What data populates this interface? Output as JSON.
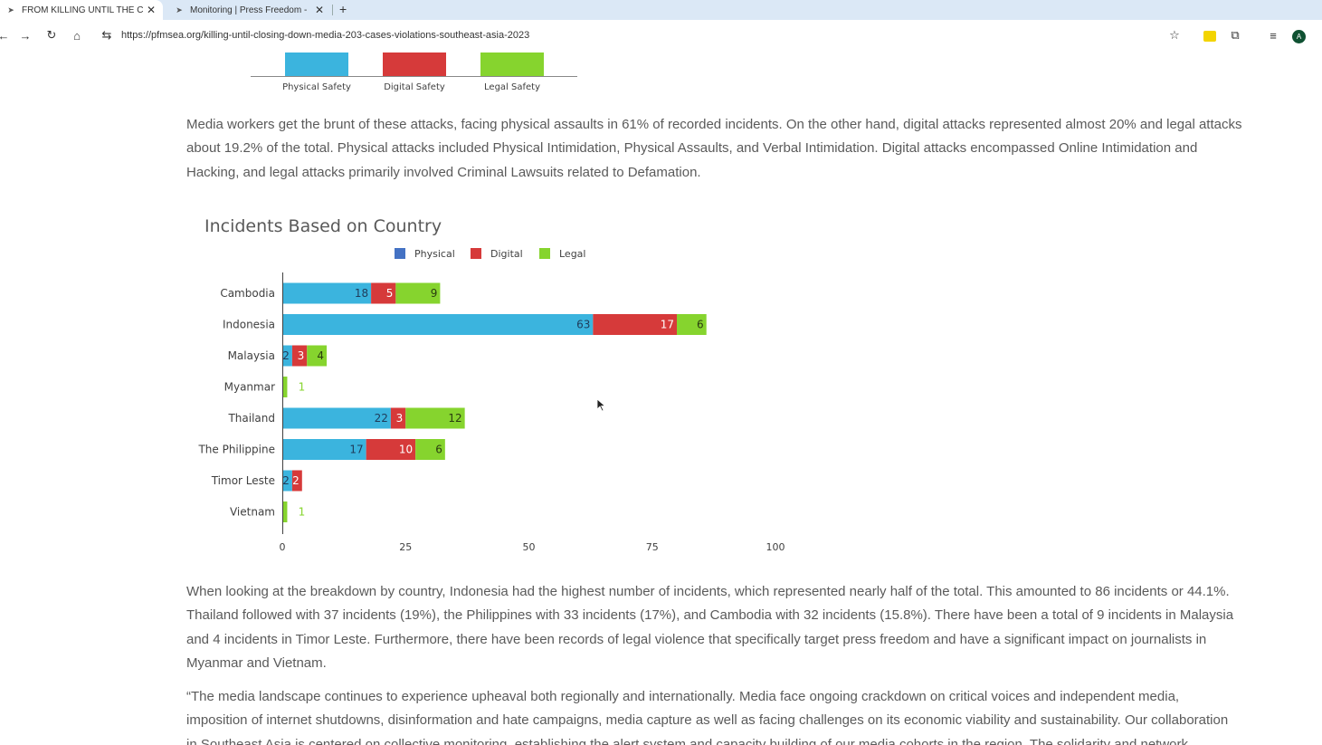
{
  "browser": {
    "tabs": [
      {
        "title": "FROM KILLING UNTIL THE C",
        "active": true
      },
      {
        "title": "Monitoring | Press Freedom -",
        "active": false
      }
    ],
    "new_tab": "+",
    "url": "https://pfmsea.org/killing-until-closing-down-media-203-cases-violations-southeast-asia-2023",
    "avatar_letter": "A"
  },
  "top_legend": {
    "labels": [
      "Physical Safety",
      "Digital Safety",
      "Legal Safety"
    ],
    "colors": [
      "#3bb4de",
      "#d63a3a",
      "#86d42e"
    ]
  },
  "article": {
    "paragraph1": [
      "Media workers get the brunt of these attacks, facing physical assaults in 61% of recorded incidents. On the other hand, digital attacks represented almost 20% and legal attacks",
      "about 19.2% of the total. Physical attacks included Physical Intimidation, Physical Assaults, and Verbal Intimidation. Digital attacks encompassed Online Intimidation and",
      "Hacking, and legal attacks primarily involved Criminal Lawsuits related to Defamation."
    ],
    "paragraph2": [
      "When looking at the breakdown by country, Indonesia had the highest number of incidents, which represented nearly half of the total. This amounted to 86 incidents or 44.1%.",
      "Thailand followed with 37 incidents (19%), the Philippines with 33 incidents (17%), and Cambodia with 32 incidents (15.8%). There have been a total of 9 incidents in Malaysia",
      "and 4 incidents in Timor Leste. Furthermore, there have been records of legal violence that specifically target press freedom and have a significant impact on journalists in",
      "Myanmar and Vietnam."
    ],
    "paragraph3": [
      "“The media landscape continues to experience upheaval both regionally and internationally. Media face ongoing crackdown on critical voices and independent media,",
      "imposition of internet shutdowns, disinformation and hate campaigns, media capture as well as facing challenges on its economic viability and sustainability. Our collaboration",
      "in Southeast Asia is centered on collective monitoring, establishing the alert system and capacity building of our media cohorts in the region. The solidarity and network"
    ]
  },
  "chart_data": {
    "type": "bar",
    "orientation": "horizontal",
    "stacked": true,
    "title": "Incidents Based on Country",
    "categories": [
      "Cambodia",
      "Indonesia",
      "Malaysia",
      "Myanmar",
      "Thailand",
      "The Philippine",
      "Timor Leste",
      "Vietnam"
    ],
    "series": [
      {
        "name": "Physical",
        "legend_color": "#4472c4",
        "bar_color": "#3bb4de",
        "label_color": "#1f3b5a",
        "values": [
          18,
          63,
          2,
          0,
          22,
          17,
          2,
          0
        ]
      },
      {
        "name": "Digital",
        "legend_color": "#d63a3a",
        "bar_color": "#d63a3a",
        "label_color": "#ffffff",
        "values": [
          5,
          17,
          3,
          0,
          3,
          10,
          2,
          0
        ]
      },
      {
        "name": "Legal",
        "legend_color": "#86d42e",
        "bar_color": "#86d42e",
        "label_color": "#2a3d10",
        "values": [
          9,
          6,
          4,
          1,
          12,
          6,
          0,
          1
        ]
      }
    ],
    "xlim": [
      0,
      100
    ],
    "xticks": [
      0,
      25,
      50,
      75,
      100
    ],
    "legend_position": "top",
    "grid": false
  }
}
